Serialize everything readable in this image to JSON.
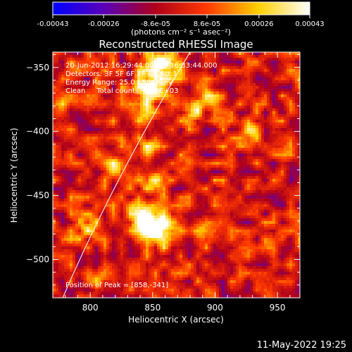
{
  "chart_data": {
    "type": "heatmap",
    "title": "Reconstructed RHESSI Image",
    "xlabel": "Heliocentric X (arcsec)",
    "ylabel": "Heliocentric Y (arcsec)",
    "xlim": [
      770,
      968
    ],
    "ylim": [
      -530,
      -338
    ],
    "x_ticks": [
      800,
      850,
      900,
      950
    ],
    "y_ticks": [
      -350,
      -400,
      -450,
      -500
    ],
    "colorbar": {
      "range": [
        -0.00043,
        0.00043
      ],
      "tick_values": [
        -0.00043,
        -0.00026,
        -8.6e-05,
        8.6e-05,
        0.00026,
        0.00043
      ],
      "tick_labels": [
        "-0.00043",
        "-0.00026",
        "-8.6e-05",
        "8.6e-05",
        "0.00026",
        "0.00043"
      ],
      "unit_label": "(photons cm⁻² s⁻¹ asec⁻²)",
      "colors": [
        "#0000ff",
        "#5a00b8",
        "#b0001a",
        "#ff3a00",
        "#ffd000",
        "#ffffff"
      ]
    },
    "annotations": [
      "20-Jun-2012 16:29:44.000 to 16:33:44.000",
      "Detectors: 3F 5F 6F 7F 8F, Att 1",
      "Energy Range: 25.0 - 50.0 keV",
      "Clean     Total counts: 4.40E+03"
    ],
    "peak_label": "Position of Peak = [858,-341]",
    "peak": [
      858,
      -341
    ],
    "sources": [
      {
        "x": 858,
        "y": -348,
        "amp": 0.00043,
        "sigma": 9
      },
      {
        "x": 848,
        "y": -366,
        "amp": 0.0004,
        "sigma": 9
      },
      {
        "x": 843,
        "y": -388,
        "amp": 0.0002,
        "sigma": 7
      },
      {
        "x": 845,
        "y": -412,
        "amp": 0.00024,
        "sigma": 6
      },
      {
        "x": 850,
        "y": -437,
        "amp": 0.00027,
        "sigma": 7
      },
      {
        "x": 845,
        "y": -470,
        "amp": 0.0004,
        "sigma": 10
      },
      {
        "x": 858,
        "y": -478,
        "amp": 0.00036,
        "sigma": 9
      },
      {
        "x": 822,
        "y": -430,
        "amp": 0.00032,
        "sigma": 7
      },
      {
        "x": 796,
        "y": -475,
        "amp": 0.00026,
        "sigma": 7
      },
      {
        "x": 810,
        "y": -515,
        "amp": 0.00024,
        "sigma": 6
      },
      {
        "x": 785,
        "y": -375,
        "amp": 0.00022,
        "sigma": 6
      },
      {
        "x": 882,
        "y": -385,
        "amp": 0.00033,
        "sigma": 6
      },
      {
        "x": 898,
        "y": -375,
        "amp": 0.00025,
        "sigma": 6
      },
      {
        "x": 890,
        "y": -480,
        "amp": 0.00018,
        "sigma": 6
      },
      {
        "x": 930,
        "y": -398,
        "amp": 0.0002,
        "sigma": 7
      },
      {
        "x": 945,
        "y": -530,
        "amp": 0.0002,
        "sigma": 6
      }
    ],
    "limb_arc": {
      "x0": 880,
      "y0": -338,
      "x1": 778,
      "y1": -530
    }
  },
  "timestamp": "11-May-2022 19:25"
}
